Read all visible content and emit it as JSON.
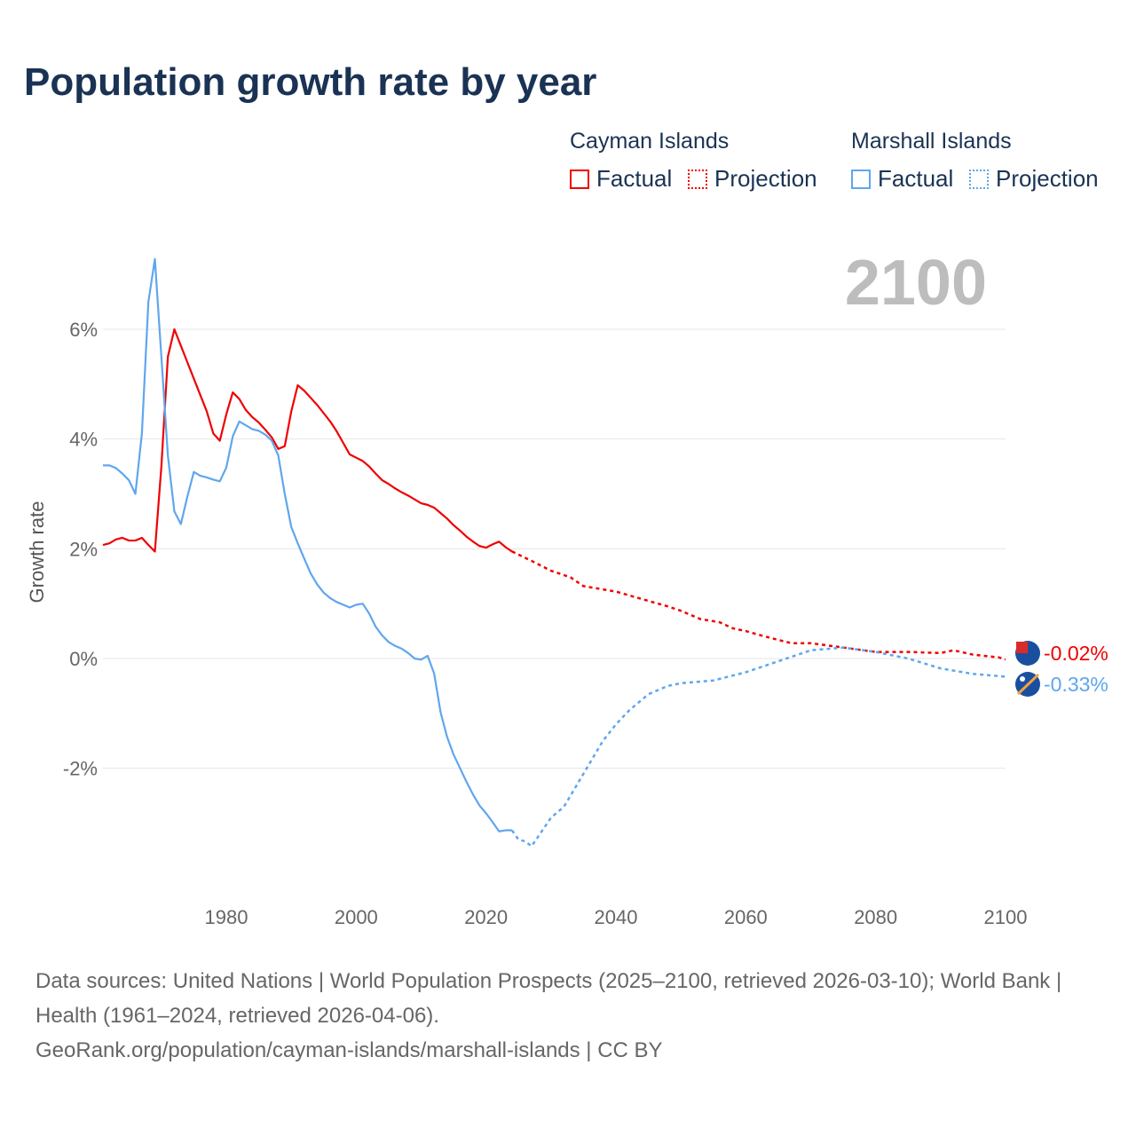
{
  "title": "Population growth rate by year",
  "legend": {
    "groups": [
      {
        "name": "Cayman Islands",
        "color": "#f00000",
        "factual": "Factual",
        "projection": "Projection"
      },
      {
        "name": "Marshall Islands",
        "color": "#5fa6ee",
        "factual": "Factual",
        "projection": "Projection"
      }
    ]
  },
  "current_year": "2100",
  "footer": {
    "line1": "Data sources: United Nations | World Population Prospects (2025–2100, retrieved 2026-03-10); World Bank | Health (1961–2024, retrieved 2026-04-06).",
    "line2": "GeoRank.org/population/cayman-islands/marshall-islands | CC BY"
  },
  "chart_data": {
    "type": "line",
    "title": "Population growth rate by year",
    "ylabel": "Growth rate",
    "xlim": [
      1961,
      2100
    ],
    "ylim": [
      -4,
      7.5
    ],
    "x_ticks": [
      1980,
      2000,
      2020,
      2040,
      2060,
      2080,
      2100
    ],
    "x_tick_labels": [
      "1980",
      "2000",
      "2020",
      "2040",
      "2060",
      "2080",
      "2100"
    ],
    "y_ticks": [
      -2,
      0,
      2,
      4,
      6
    ],
    "y_tick_labels": [
      "-2%",
      "0%",
      "2%",
      "4%",
      "6%"
    ],
    "series": [
      {
        "name": "Cayman Islands",
        "color": "#f00000",
        "end_label": "-0.02%",
        "factual": {
          "start": 1961,
          "values": [
            2.07,
            2.1,
            2.17,
            2.2,
            2.15,
            2.15,
            2.2,
            2.07,
            1.95,
            3.5,
            5.5,
            6.0,
            5.7,
            5.4,
            5.1,
            4.8,
            4.5,
            4.1,
            3.97,
            4.45,
            4.85,
            4.73,
            4.53,
            4.4,
            4.3,
            4.17,
            4.03,
            3.82,
            3.87,
            4.5,
            4.98,
            4.88,
            4.75,
            4.62,
            4.47,
            4.32,
            4.14,
            3.93,
            3.72,
            3.66,
            3.6,
            3.5,
            3.37,
            3.25,
            3.18,
            3.1,
            3.03,
            2.97,
            2.9,
            2.83,
            2.8,
            2.75,
            2.65,
            2.55,
            2.43,
            2.33,
            2.22,
            2.13,
            2.05,
            2.02,
            2.08,
            2.13,
            2.03,
            1.95
          ]
        },
        "projection": {
          "x": [
            2024,
            2027,
            2030,
            2033,
            2035,
            2040,
            2045,
            2048,
            2050,
            2053,
            2056,
            2058,
            2060,
            2063,
            2067,
            2070,
            2075,
            2080,
            2085,
            2090,
            2092,
            2095,
            2099,
            2100
          ],
          "values": [
            1.95,
            1.78,
            1.6,
            1.48,
            1.32,
            1.22,
            1.05,
            0.95,
            0.87,
            0.72,
            0.66,
            0.55,
            0.5,
            0.4,
            0.28,
            0.28,
            0.2,
            0.12,
            0.12,
            0.1,
            0.15,
            0.07,
            0.02,
            -0.02
          ]
        }
      },
      {
        "name": "Marshall Islands",
        "color": "#5fa6ee",
        "end_label": "-0.33%",
        "factual": {
          "start": 1961,
          "values": [
            3.52,
            3.52,
            3.47,
            3.37,
            3.25,
            3.0,
            4.1,
            6.5,
            7.28,
            5.5,
            3.7,
            2.68,
            2.45,
            2.95,
            3.4,
            3.33,
            3.3,
            3.26,
            3.23,
            3.48,
            4.05,
            4.32,
            4.25,
            4.18,
            4.15,
            4.08,
            3.97,
            3.7,
            3.0,
            2.4,
            2.1,
            1.82,
            1.55,
            1.35,
            1.2,
            1.1,
            1.03,
            0.98,
            0.93,
            0.98,
            1.0,
            0.82,
            0.58,
            0.42,
            0.3,
            0.23,
            0.18,
            0.1,
            0.0,
            -0.02,
            0.05,
            -0.27,
            -0.98,
            -1.43,
            -1.75,
            -2.0,
            -2.25,
            -2.48,
            -2.68,
            -2.82,
            -2.98,
            -3.15,
            -3.13,
            -3.13
          ]
        },
        "projection": {
          "x": [
            2024,
            2025,
            2026,
            2027,
            2028,
            2030,
            2032,
            2035,
            2038,
            2040,
            2042,
            2045,
            2048,
            2050,
            2055,
            2060,
            2065,
            2070,
            2075,
            2080,
            2085,
            2090,
            2095,
            2100
          ],
          "values": [
            -3.13,
            -3.3,
            -3.33,
            -3.42,
            -3.25,
            -2.9,
            -2.7,
            -2.1,
            -1.5,
            -1.2,
            -0.95,
            -0.65,
            -0.5,
            -0.45,
            -0.4,
            -0.25,
            -0.05,
            0.15,
            0.2,
            0.12,
            0.0,
            -0.18,
            -0.28,
            -0.33
          ]
        }
      }
    ]
  }
}
